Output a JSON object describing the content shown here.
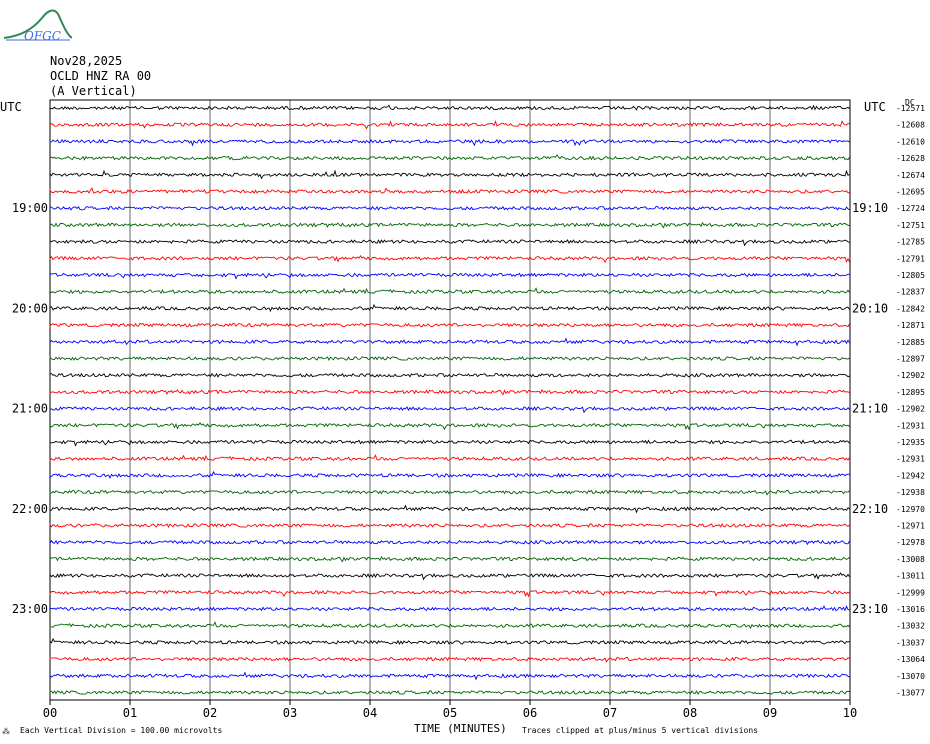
{
  "header": {
    "logo_text": "OFGC",
    "date": "Nov28,2025",
    "station": "OCLD HNZ RA 00",
    "component": "(A Vertical)"
  },
  "utc_left": "UTC",
  "utc_right": "UTC",
  "dc_label": "DC",
  "chart_data": {
    "type": "line",
    "title": "",
    "xlabel": "TIME (MINUTES)",
    "x_ticks": [
      "00",
      "01",
      "02",
      "03",
      "04",
      "05",
      "06",
      "07",
      "08",
      "09",
      "10"
    ],
    "xlim": [
      0,
      10
    ],
    "rows": 36,
    "row_colors": [
      "#000000",
      "#ff0000",
      "#0000ff",
      "#006400"
    ],
    "left_time_labels": [
      {
        "row": 6,
        "text": "19:00"
      },
      {
        "row": 12,
        "text": "20:00"
      },
      {
        "row": 18,
        "text": "21:00"
      },
      {
        "row": 24,
        "text": "22:00"
      },
      {
        "row": 30,
        "text": "23:00"
      }
    ],
    "right_time_labels": [
      {
        "row": 6,
        "text": "19:10"
      },
      {
        "row": 12,
        "text": "20:10"
      },
      {
        "row": 18,
        "text": "21:10"
      },
      {
        "row": 24,
        "text": "22:10"
      },
      {
        "row": 30,
        "text": "23:10"
      }
    ],
    "dc_offsets": [
      "-12571",
      "-12608",
      "-12610",
      "-12628",
      "-12674",
      "-12695",
      "-12724",
      "-12751",
      "-12785",
      "-12791",
      "-12805",
      "-12837",
      "-12842",
      "-12871",
      "-12885",
      "-12897",
      "-12902",
      "-12895",
      "-12902",
      "-12931",
      "-12935",
      "-12931",
      "-12942",
      "-12938",
      "-12970",
      "-12971",
      "-12978",
      "-13008",
      "-13011",
      "-12999",
      "-13016",
      "-13032",
      "-13037",
      "-13064",
      "-13070",
      "-13077"
    ]
  },
  "footer": {
    "scale_note": "Each Vertical Division =  100.00 microvolts",
    "clip_note": "Traces clipped at plus/minus 5 vertical divisions"
  }
}
